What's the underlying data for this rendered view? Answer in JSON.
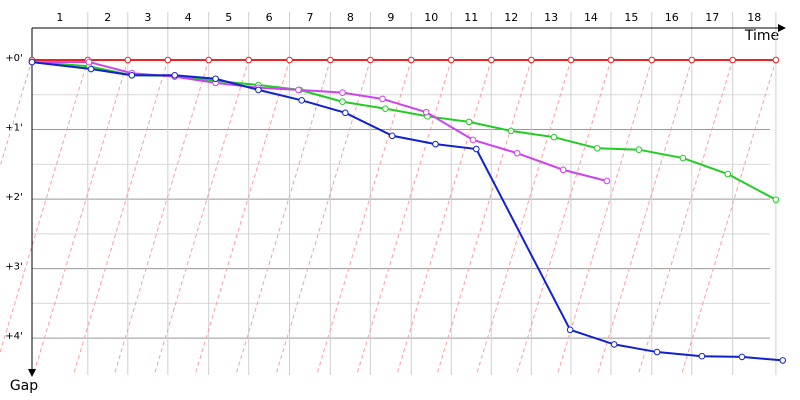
{
  "chart_data": {
    "type": "line",
    "x_label": "Time",
    "y_label": "Gap",
    "categories": [
      "1",
      "2",
      "3",
      "4",
      "5",
      "6",
      "7",
      "8",
      "9",
      "10",
      "11",
      "12",
      "13",
      "14",
      "15",
      "16",
      "17",
      "18"
    ],
    "xlim": [
      0,
      18.6
    ],
    "ylim": [
      -0.46,
      4.53
    ],
    "yticks": [
      {
        "value": 0,
        "label": "+0'"
      },
      {
        "value": 1,
        "label": "+1'"
      },
      {
        "value": 2,
        "label": "+2'"
      },
      {
        "value": 3,
        "label": "+3'"
      },
      {
        "value": 4,
        "label": "+4'"
      }
    ],
    "minor_yticks": [
      0.5,
      1.5,
      2.5,
      3.5
    ],
    "grid": true,
    "series": [
      {
        "color": "#ee2222",
        "x": [
          0,
          1.38,
          2.37,
          3.36,
          4.37,
          5.36,
          6.37,
          7.38,
          8.37,
          9.38,
          10.37,
          11.36,
          12.35,
          13.33,
          14.32,
          15.33,
          16.32,
          17.33,
          18.4
        ],
        "values": [
          0,
          0,
          0,
          0,
          0,
          0,
          0,
          0,
          0,
          0,
          0,
          0,
          0,
          0,
          0,
          0,
          0,
          0,
          0
        ]
      },
      {
        "color": "#22cc22",
        "x": [
          0,
          1.41,
          2.47,
          3.53,
          4.54,
          5.6,
          6.62,
          7.68,
          8.74,
          9.78,
          10.81,
          11.85,
          12.91,
          13.98,
          15.01,
          16.1,
          17.21,
          18.4
        ],
        "values": [
          0.03,
          0.09,
          0.22,
          0.23,
          0.3,
          0.36,
          0.43,
          0.6,
          0.7,
          0.81,
          0.89,
          1.02,
          1.11,
          1.27,
          1.29,
          1.41,
          1.64,
          2.01
        ]
      },
      {
        "color": "#cc44ee",
        "x": [
          0,
          1.41,
          2.47,
          3.53,
          4.54,
          5.6,
          6.59,
          7.68,
          8.67,
          9.75,
          10.91,
          12.0,
          13.14,
          14.22
        ],
        "values": [
          0.03,
          0.03,
          0.19,
          0.24,
          0.33,
          0.4,
          0.43,
          0.47,
          0.56,
          0.75,
          1.15,
          1.34,
          1.58,
          1.74
        ]
      },
      {
        "color": "#1122cc",
        "x": [
          0,
          1.46,
          2.47,
          3.53,
          4.54,
          5.6,
          6.67,
          7.75,
          8.91,
          9.98,
          10.99,
          13.31,
          14.4,
          15.46,
          16.57,
          17.56,
          18.57
        ],
        "values": [
          0.03,
          0.13,
          0.22,
          0.22,
          0.27,
          0.43,
          0.58,
          0.76,
          1.09,
          1.21,
          1.28,
          3.88,
          4.09,
          4.2,
          4.26,
          4.27,
          4.32
        ]
      }
    ]
  }
}
